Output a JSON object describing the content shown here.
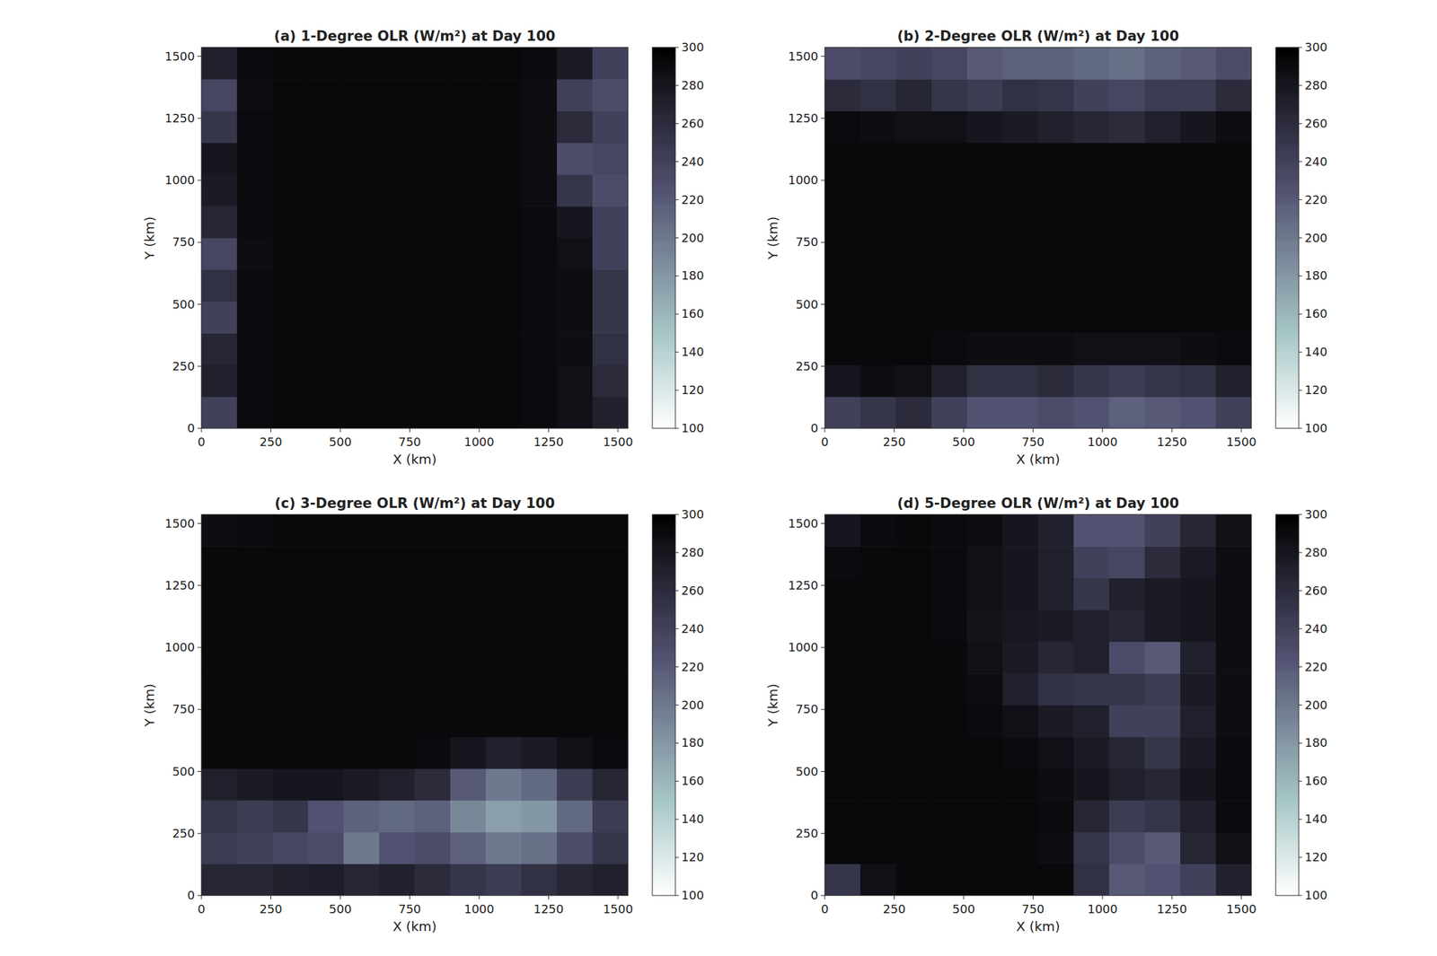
{
  "chart_data": [
    {
      "type": "heatmap",
      "title": "(a) 1-Degree OLR (W/m²) at Day 100",
      "x_label": "X (km)",
      "y_label": "Y (km)",
      "xlim": [
        0,
        1536
      ],
      "ylim": [
        0,
        1536
      ],
      "xticks": [
        0,
        250,
        500,
        750,
        1000,
        1250,
        1500
      ],
      "yticks": [
        0,
        250,
        500,
        750,
        1000,
        1250,
        1500
      ],
      "cells": [
        [
          240,
          290,
          292,
          292,
          292,
          292,
          292,
          292,
          292,
          290,
          285,
          270
        ],
        [
          270,
          290,
          292,
          292,
          292,
          292,
          292,
          292,
          292,
          290,
          285,
          260
        ],
        [
          265,
          290,
          292,
          292,
          292,
          292,
          292,
          292,
          292,
          290,
          288,
          255
        ],
        [
          240,
          290,
          292,
          292,
          292,
          292,
          292,
          292,
          292,
          290,
          288,
          250
        ],
        [
          255,
          290,
          292,
          292,
          292,
          292,
          292,
          292,
          292,
          290,
          288,
          250
        ],
        [
          235,
          288,
          292,
          292,
          292,
          292,
          292,
          292,
          292,
          290,
          285,
          240
        ],
        [
          265,
          290,
          292,
          292,
          292,
          292,
          292,
          292,
          292,
          290,
          280,
          240
        ],
        [
          275,
          290,
          292,
          292,
          292,
          292,
          292,
          292,
          292,
          288,
          250,
          230
        ],
        [
          280,
          290,
          292,
          292,
          292,
          292,
          292,
          292,
          292,
          288,
          230,
          235
        ],
        [
          250,
          290,
          292,
          292,
          292,
          292,
          292,
          292,
          292,
          288,
          260,
          240
        ],
        [
          235,
          288,
          292,
          292,
          292,
          292,
          292,
          292,
          292,
          288,
          240,
          230
        ],
        [
          270,
          290,
          292,
          292,
          292,
          292,
          292,
          292,
          292,
          290,
          275,
          240
        ]
      ],
      "colorbar": {
        "range": [
          100,
          300
        ],
        "ticks": [
          100,
          120,
          140,
          160,
          180,
          200,
          220,
          240,
          260,
          280,
          300
        ]
      }
    },
    {
      "type": "heatmap",
      "title": "(b) 2-Degree OLR (W/m²) at Day 100",
      "x_label": "X (km)",
      "y_label": "Y (km)",
      "xlim": [
        0,
        1536
      ],
      "ylim": [
        0,
        1536
      ],
      "xticks": [
        0,
        250,
        500,
        750,
        1000,
        1250,
        1500
      ],
      "yticks": [
        0,
        250,
        500,
        750,
        1000,
        1250,
        1500
      ],
      "cells": [
        [
          240,
          250,
          260,
          240,
          225,
          225,
          230,
          225,
          215,
          220,
          225,
          240
        ],
        [
          280,
          288,
          285,
          270,
          255,
          255,
          260,
          250,
          245,
          250,
          255,
          270
        ],
        [
          292,
          292,
          292,
          290,
          288,
          288,
          288,
          285,
          285,
          285,
          288,
          290
        ],
        [
          292,
          292,
          292,
          292,
          292,
          292,
          292,
          292,
          292,
          292,
          292,
          292
        ],
        [
          292,
          292,
          292,
          292,
          292,
          292,
          292,
          292,
          292,
          292,
          292,
          292
        ],
        [
          292,
          292,
          292,
          292,
          292,
          292,
          292,
          292,
          292,
          292,
          292,
          292
        ],
        [
          292,
          292,
          292,
          292,
          292,
          292,
          292,
          292,
          292,
          292,
          292,
          292
        ],
        [
          292,
          292,
          292,
          292,
          292,
          292,
          292,
          292,
          292,
          292,
          292,
          292
        ],
        [
          292,
          292,
          292,
          292,
          292,
          292,
          292,
          292,
          292,
          292,
          292,
          292
        ],
        [
          290,
          288,
          285,
          285,
          280,
          275,
          270,
          265,
          260,
          270,
          280,
          288
        ],
        [
          260,
          255,
          265,
          250,
          245,
          255,
          250,
          240,
          235,
          245,
          245,
          260
        ],
        [
          230,
          235,
          240,
          235,
          220,
          215,
          215,
          210,
          205,
          215,
          220,
          230
        ]
      ],
      "colorbar": {
        "range": [
          100,
          300
        ],
        "ticks": [
          100,
          120,
          140,
          160,
          180,
          200,
          220,
          240,
          260,
          280,
          300
        ]
      }
    },
    {
      "type": "heatmap",
      "title": "(c) 3-Degree OLR (W/m²) at Day 100",
      "x_label": "X (km)",
      "y_label": "Y (km)",
      "xlim": [
        0,
        1536
      ],
      "ylim": [
        0,
        1536
      ],
      "xticks": [
        0,
        250,
        500,
        750,
        1000,
        1250,
        1500
      ],
      "yticks": [
        0,
        250,
        500,
        750,
        1000,
        1250,
        1500
      ],
      "cells": [
        [
          265,
          265,
          270,
          272,
          265,
          270,
          260,
          250,
          245,
          255,
          265,
          270
        ],
        [
          245,
          240,
          235,
          230,
          200,
          225,
          230,
          215,
          200,
          205,
          230,
          250
        ],
        [
          250,
          245,
          250,
          225,
          215,
          210,
          215,
          190,
          175,
          180,
          210,
          245
        ],
        [
          270,
          275,
          280,
          280,
          275,
          270,
          260,
          220,
          200,
          210,
          245,
          265
        ],
        [
          292,
          292,
          292,
          292,
          292,
          292,
          290,
          280,
          270,
          275,
          285,
          290
        ],
        [
          292,
          292,
          292,
          292,
          292,
          292,
          292,
          292,
          292,
          292,
          292,
          292
        ],
        [
          292,
          292,
          292,
          292,
          292,
          292,
          292,
          292,
          292,
          292,
          292,
          292
        ],
        [
          292,
          292,
          292,
          292,
          292,
          292,
          292,
          292,
          292,
          292,
          292,
          292
        ],
        [
          292,
          292,
          292,
          292,
          292,
          292,
          292,
          292,
          292,
          292,
          292,
          292
        ],
        [
          292,
          292,
          292,
          292,
          292,
          292,
          292,
          292,
          292,
          292,
          292,
          292
        ],
        [
          292,
          292,
          292,
          292,
          292,
          292,
          292,
          292,
          292,
          292,
          292,
          292
        ],
        [
          288,
          290,
          292,
          292,
          292,
          292,
          292,
          292,
          292,
          292,
          292,
          292
        ]
      ],
      "colorbar": {
        "range": [
          100,
          300
        ],
        "ticks": [
          100,
          120,
          140,
          160,
          180,
          200,
          220,
          240,
          260,
          280,
          300
        ]
      }
    },
    {
      "type": "heatmap",
      "title": "(d) 5-Degree OLR (W/m²) at Day 100",
      "x_label": "X (km)",
      "y_label": "Y (km)",
      "xlim": [
        0,
        1536
      ],
      "ylim": [
        0,
        1536
      ],
      "xticks": [
        0,
        250,
        500,
        750,
        1000,
        1250,
        1500
      ],
      "yticks": [
        0,
        250,
        500,
        750,
        1000,
        1250,
        1500
      ],
      "cells": [
        [
          250,
          285,
          292,
          292,
          292,
          292,
          292,
          255,
          220,
          225,
          240,
          270
        ],
        [
          292,
          292,
          292,
          292,
          292,
          292,
          288,
          250,
          230,
          220,
          265,
          285
        ],
        [
          292,
          292,
          292,
          292,
          292,
          292,
          290,
          265,
          245,
          250,
          270,
          290
        ],
        [
          292,
          292,
          292,
          292,
          292,
          292,
          288,
          280,
          270,
          265,
          280,
          290
        ],
        [
          292,
          292,
          292,
          292,
          292,
          290,
          285,
          275,
          265,
          250,
          275,
          290
        ],
        [
          292,
          292,
          292,
          292,
          290,
          285,
          275,
          270,
          240,
          240,
          270,
          288
        ],
        [
          292,
          292,
          292,
          292,
          288,
          270,
          255,
          250,
          250,
          245,
          275,
          288
        ],
        [
          292,
          292,
          292,
          292,
          285,
          275,
          265,
          270,
          230,
          220,
          270,
          288
        ],
        [
          292,
          292,
          292,
          290,
          282,
          278,
          275,
          270,
          265,
          275,
          280,
          288
        ],
        [
          292,
          292,
          292,
          290,
          285,
          280,
          270,
          250,
          270,
          275,
          280,
          288
        ],
        [
          290,
          292,
          292,
          290,
          285,
          280,
          270,
          240,
          235,
          260,
          275,
          288
        ],
        [
          280,
          290,
          292,
          290,
          288,
          280,
          270,
          225,
          225,
          240,
          265,
          285
        ]
      ],
      "colorbar": {
        "range": [
          100,
          300
        ],
        "ticks": [
          100,
          120,
          140,
          160,
          180,
          200,
          220,
          240,
          260,
          280,
          300
        ]
      }
    }
  ]
}
